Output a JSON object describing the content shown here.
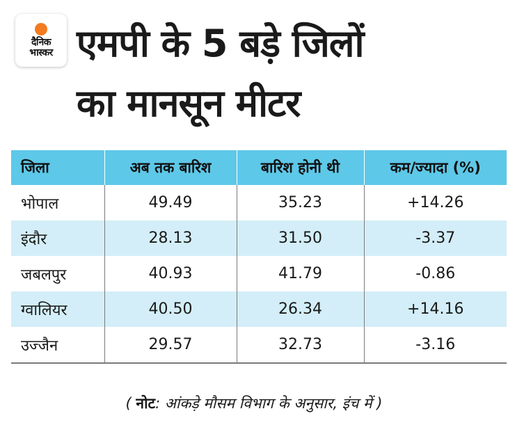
{
  "logo": {
    "line1": "दैनिक",
    "line2": "भास्कर",
    "accent_color": "#f47b20"
  },
  "title": {
    "line1": "एमपी के 5 बड़े जिलों",
    "line2": "का मानसून मीटर"
  },
  "table": {
    "header_color": "#5ec8e8",
    "alt_row_color": "#d3eef8",
    "columns": [
      "जिला",
      "अब तक बारिश",
      "बारिश होनी थी",
      "कम/ज्यादा (%)"
    ],
    "rows": [
      [
        "भोपाल",
        "49.49",
        "35.23",
        "+14.26"
      ],
      [
        "इंदौर",
        "28.13",
        "31.50",
        "-3.37"
      ],
      [
        "जबलपुर",
        "40.93",
        "41.79",
        "-0.86"
      ],
      [
        "ग्वालियर",
        "40.50",
        "26.34",
        "+14.16"
      ],
      [
        "उज्जैन",
        "29.57",
        "32.73",
        "-3.16"
      ]
    ]
  },
  "note": {
    "open": "(",
    "label": "नोट",
    "text": ": आंकड़े मौसम विभाग के अनुसार, इंच में",
    "close": ")"
  }
}
